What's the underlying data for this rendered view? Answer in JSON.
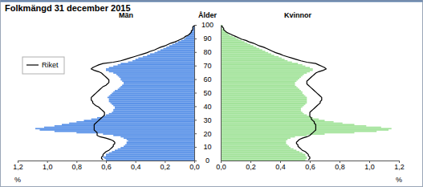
{
  "title": "Folkmängd 31 december 2015",
  "chart_data": [
    {
      "type": "bar",
      "orientation": "horizontal",
      "title": "Män",
      "xlabel": "%",
      "ylabel": "Ålder",
      "bins": [
        0,
        1,
        2,
        3,
        4,
        5,
        6,
        7,
        8,
        9,
        10,
        11,
        12,
        13,
        14,
        15,
        16,
        17,
        18,
        19,
        20,
        21,
        22,
        23,
        24,
        25,
        26,
        27,
        28,
        29,
        30,
        31,
        32,
        33,
        34,
        35,
        36,
        37,
        38,
        39,
        40,
        41,
        42,
        43,
        44,
        45,
        46,
        47,
        48,
        49,
        50,
        51,
        52,
        53,
        54,
        55,
        56,
        57,
        58,
        59,
        60,
        61,
        62,
        63,
        64,
        65,
        66,
        67,
        68,
        69,
        70,
        71,
        72,
        73,
        74,
        75,
        76,
        77,
        78,
        79,
        80,
        81,
        82,
        83,
        84,
        85,
        86,
        87,
        88,
        89,
        90,
        91,
        92,
        93,
        94,
        95,
        96,
        97,
        98,
        99,
        100
      ],
      "xlim": [
        1.2,
        0
      ],
      "xticks": [
        {
          "value": 1.2,
          "label": "1,2"
        },
        {
          "value": 1,
          "label": "1,0"
        },
        {
          "value": 0.8,
          "label": "0,8"
        },
        {
          "value": 0.6,
          "label": "0,6"
        },
        {
          "value": 0.4,
          "label": "0,4"
        },
        {
          "value": 0.2,
          "label": "0,2"
        },
        {
          "value": 0,
          "label": "0,0"
        }
      ],
      "ylim": [
        0,
        100
      ],
      "yticks": [
        0,
        10,
        20,
        30,
        40,
        50,
        60,
        70,
        80,
        90,
        100
      ],
      "legend": "upper left",
      "series": [
        {
          "type": "bar",
          "color": "#5b93e8",
          "values": [
            0.6,
            0.61,
            0.62,
            0.6,
            0.6,
            0.58,
            0.56,
            0.54,
            0.52,
            0.5,
            0.48,
            0.47,
            0.46,
            0.46,
            0.45,
            0.46,
            0.48,
            0.5,
            0.55,
            0.62,
            0.8,
            0.95,
            1.05,
            1.08,
            1.02,
            0.95,
            0.9,
            0.85,
            0.8,
            0.75,
            0.7,
            0.66,
            0.62,
            0.6,
            0.58,
            0.56,
            0.55,
            0.55,
            0.54,
            0.54,
            0.55,
            0.56,
            0.57,
            0.58,
            0.58,
            0.58,
            0.59,
            0.58,
            0.57,
            0.56,
            0.55,
            0.54,
            0.52,
            0.51,
            0.5,
            0.49,
            0.48,
            0.48,
            0.49,
            0.5,
            0.5,
            0.51,
            0.52,
            0.53,
            0.55,
            0.58,
            0.6,
            0.6,
            0.58,
            0.55,
            0.52,
            0.5,
            0.45,
            0.42,
            0.4,
            0.38,
            0.35,
            0.32,
            0.3,
            0.27,
            0.25,
            0.23,
            0.21,
            0.19,
            0.17,
            0.15,
            0.13,
            0.11,
            0.09,
            0.07,
            0.06,
            0.05,
            0.04,
            0.03,
            0.02,
            0.02,
            0.01,
            0.01,
            0.01,
            0
          ]
        },
        {
          "name": "Riket",
          "type": "line",
          "color": "#000000",
          "values": [
            0.62,
            0.63,
            0.63,
            0.62,
            0.62,
            0.61,
            0.6,
            0.58,
            0.57,
            0.56,
            0.55,
            0.55,
            0.54,
            0.54,
            0.55,
            0.57,
            0.6,
            0.64,
            0.66,
            0.66,
            0.66,
            0.67,
            0.68,
            0.68,
            0.68,
            0.68,
            0.68,
            0.67,
            0.66,
            0.65,
            0.64,
            0.63,
            0.62,
            0.61,
            0.61,
            0.61,
            0.62,
            0.63,
            0.64,
            0.65,
            0.67,
            0.68,
            0.69,
            0.69,
            0.7,
            0.7,
            0.7,
            0.69,
            0.68,
            0.67,
            0.66,
            0.65,
            0.64,
            0.63,
            0.62,
            0.6,
            0.59,
            0.58,
            0.58,
            0.58,
            0.59,
            0.6,
            0.61,
            0.62,
            0.63,
            0.65,
            0.68,
            0.7,
            0.69,
            0.67,
            0.65,
            0.62,
            0.55,
            0.5,
            0.47,
            0.44,
            0.41,
            0.38,
            0.35,
            0.32,
            0.3,
            0.27,
            0.25,
            0.23,
            0.2,
            0.18,
            0.16,
            0.13,
            0.11,
            0.09,
            0.07,
            0.06,
            0.04,
            0.03,
            0.02,
            0.02,
            0.01,
            0.01,
            0.01,
            0
          ]
        }
      ]
    },
    {
      "type": "bar",
      "orientation": "horizontal",
      "title": "Kvinnor",
      "xlabel": "%",
      "bins": [
        0,
        1,
        2,
        3,
        4,
        5,
        6,
        7,
        8,
        9,
        10,
        11,
        12,
        13,
        14,
        15,
        16,
        17,
        18,
        19,
        20,
        21,
        22,
        23,
        24,
        25,
        26,
        27,
        28,
        29,
        30,
        31,
        32,
        33,
        34,
        35,
        36,
        37,
        38,
        39,
        40,
        41,
        42,
        43,
        44,
        45,
        46,
        47,
        48,
        49,
        50,
        51,
        52,
        53,
        54,
        55,
        56,
        57,
        58,
        59,
        60,
        61,
        62,
        63,
        64,
        65,
        66,
        67,
        68,
        69,
        70,
        71,
        72,
        73,
        74,
        75,
        76,
        77,
        78,
        79,
        80,
        81,
        82,
        83,
        84,
        85,
        86,
        87,
        88,
        89,
        90,
        91,
        92,
        93,
        94,
        95,
        96,
        97,
        98,
        99,
        100
      ],
      "xlim": [
        0,
        1.2
      ],
      "xticks": [
        {
          "value": 0,
          "label": "0,0"
        },
        {
          "value": 0.2,
          "label": "0,2"
        },
        {
          "value": 0.4,
          "label": "0,4"
        },
        {
          "value": 0.6,
          "label": "0,6"
        },
        {
          "value": 0.8,
          "label": "0,8"
        },
        {
          "value": 1,
          "label": "1,0"
        },
        {
          "value": 1.2,
          "label": "1,2"
        }
      ],
      "ylim": [
        0,
        100
      ],
      "tick_labels": "x",
      "series": [
        {
          "type": "bar",
          "color": "#a3e39b",
          "values": [
            0.57,
            0.58,
            0.58,
            0.57,
            0.57,
            0.55,
            0.53,
            0.51,
            0.49,
            0.47,
            0.46,
            0.45,
            0.44,
            0.44,
            0.44,
            0.45,
            0.47,
            0.5,
            0.58,
            0.7,
            0.9,
            1.05,
            1.13,
            1.15,
            1.08,
            0.98,
            0.9,
            0.82,
            0.76,
            0.7,
            0.66,
            0.62,
            0.6,
            0.58,
            0.56,
            0.55,
            0.54,
            0.54,
            0.54,
            0.55,
            0.56,
            0.57,
            0.58,
            0.58,
            0.58,
            0.58,
            0.58,
            0.57,
            0.56,
            0.55,
            0.55,
            0.54,
            0.53,
            0.52,
            0.51,
            0.5,
            0.5,
            0.5,
            0.51,
            0.52,
            0.53,
            0.54,
            0.55,
            0.56,
            0.58,
            0.6,
            0.62,
            0.62,
            0.6,
            0.57,
            0.55,
            0.52,
            0.48,
            0.45,
            0.43,
            0.41,
            0.39,
            0.36,
            0.34,
            0.32,
            0.3,
            0.28,
            0.26,
            0.24,
            0.22,
            0.2,
            0.18,
            0.16,
            0.14,
            0.12,
            0.1,
            0.08,
            0.06,
            0.05,
            0.04,
            0.03,
            0.02,
            0.01,
            0.01,
            0.01
          ]
        },
        {
          "type": "line",
          "color": "#000000",
          "values": [
            0.59,
            0.6,
            0.6,
            0.59,
            0.59,
            0.58,
            0.57,
            0.55,
            0.54,
            0.53,
            0.52,
            0.52,
            0.51,
            0.51,
            0.52,
            0.53,
            0.55,
            0.58,
            0.6,
            0.61,
            0.62,
            0.63,
            0.64,
            0.64,
            0.64,
            0.64,
            0.64,
            0.63,
            0.63,
            0.62,
            0.61,
            0.61,
            0.6,
            0.6,
            0.6,
            0.6,
            0.61,
            0.62,
            0.63,
            0.64,
            0.65,
            0.66,
            0.67,
            0.67,
            0.68,
            0.68,
            0.68,
            0.67,
            0.66,
            0.65,
            0.64,
            0.63,
            0.62,
            0.61,
            0.6,
            0.59,
            0.58,
            0.58,
            0.58,
            0.59,
            0.6,
            0.61,
            0.62,
            0.63,
            0.64,
            0.66,
            0.69,
            0.71,
            0.7,
            0.68,
            0.66,
            0.64,
            0.58,
            0.54,
            0.51,
            0.48,
            0.45,
            0.42,
            0.4,
            0.37,
            0.35,
            0.33,
            0.31,
            0.29,
            0.26,
            0.24,
            0.22,
            0.19,
            0.17,
            0.14,
            0.12,
            0.1,
            0.08,
            0.06,
            0.04,
            0.03,
            0.02,
            0.02,
            0.01,
            0.01
          ]
        }
      ]
    }
  ]
}
